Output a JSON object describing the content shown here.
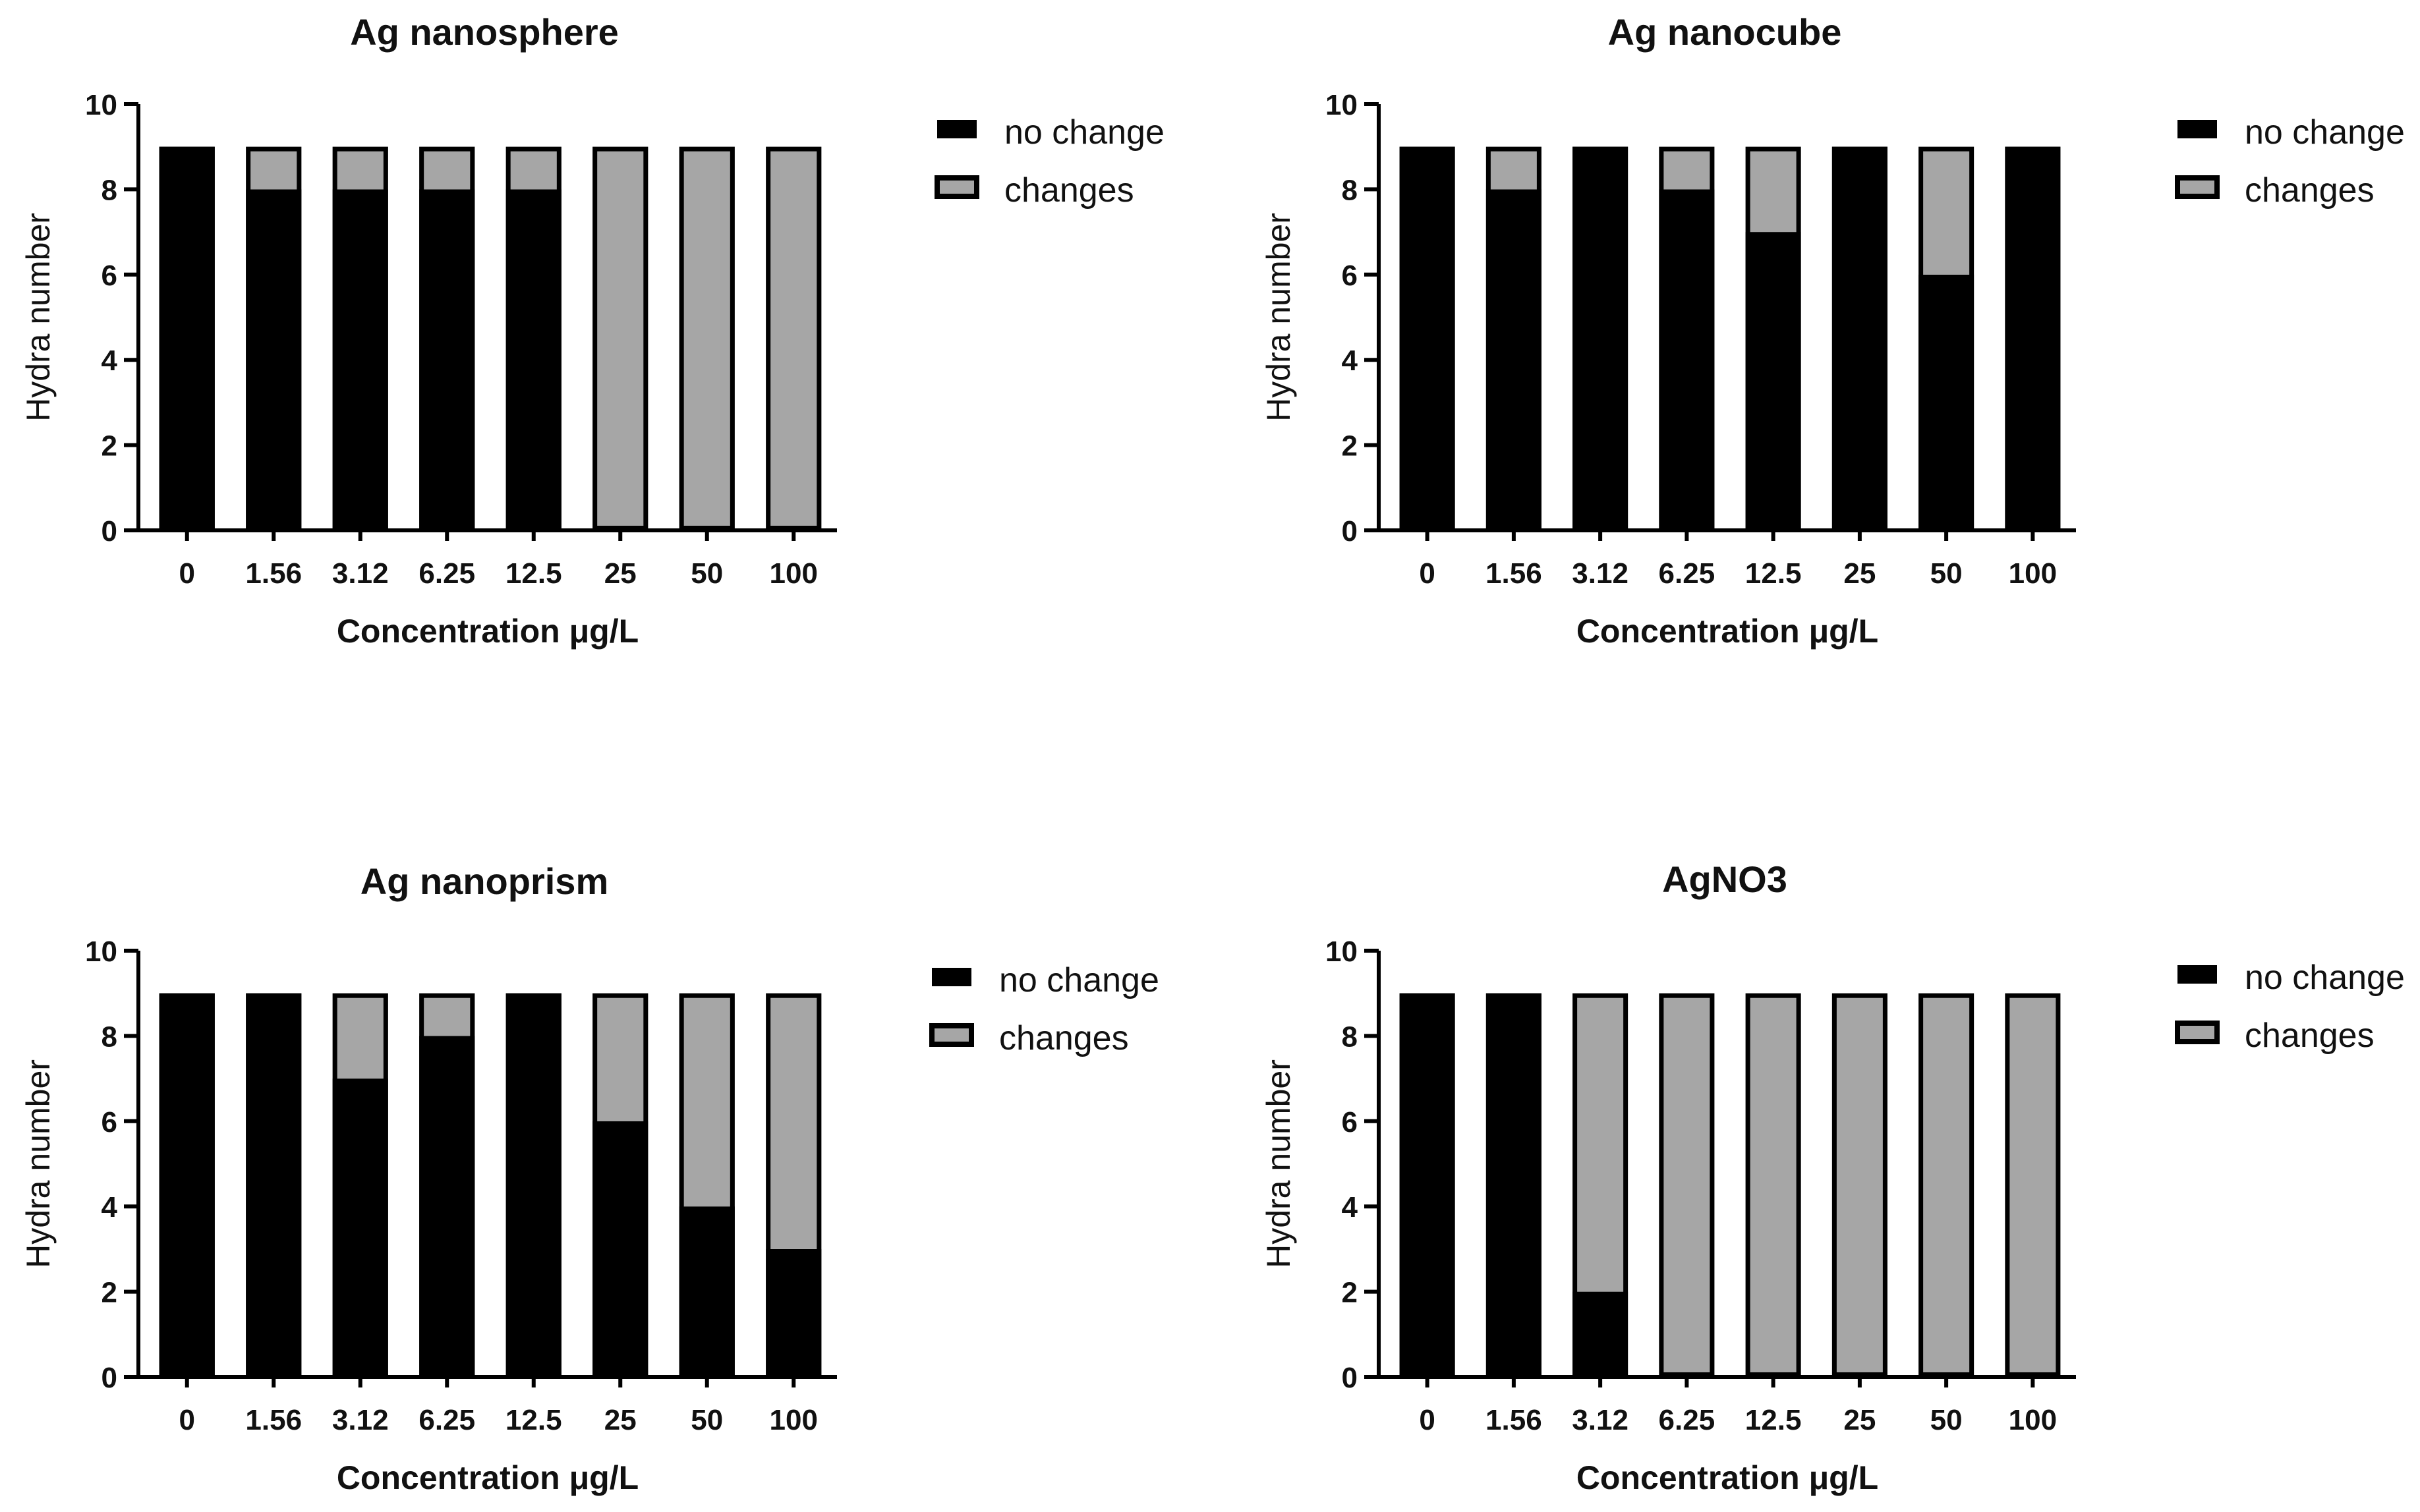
{
  "colors": {
    "no_change": "#000000",
    "changes": "#a6a6a6",
    "outline": "#000000",
    "axis": "#000000"
  },
  "chart_data": [
    {
      "type": "bar",
      "stacked": true,
      "title": "Ag nanosphere",
      "xlabel": "Concentration μg/L",
      "ylabel": "Hydra number",
      "ylim": [
        0,
        10
      ],
      "yticks": [
        0,
        2,
        4,
        6,
        8,
        10
      ],
      "categories": [
        "0",
        "1.56",
        "3.12",
        "6.25",
        "12.5",
        "25",
        "50",
        "100"
      ],
      "series": [
        {
          "name": "no change",
          "values": [
            9,
            8,
            8,
            8,
            8,
            0,
            0,
            0
          ]
        },
        {
          "name": "changes",
          "values": [
            0,
            1,
            1,
            1,
            1,
            9,
            9,
            9
          ]
        }
      ],
      "legend": [
        "no change",
        "changes"
      ],
      "legend_position": "right"
    },
    {
      "type": "bar",
      "stacked": true,
      "title": "Ag nanocube",
      "xlabel": "Concentration μg/L",
      "ylabel": "Hydra number",
      "ylim": [
        0,
        10
      ],
      "yticks": [
        0,
        2,
        4,
        6,
        8,
        10
      ],
      "categories": [
        "0",
        "1.56",
        "3.12",
        "6.25",
        "12.5",
        "25",
        "50",
        "100"
      ],
      "series": [
        {
          "name": "no change",
          "values": [
            9,
            8,
            9,
            8,
            7,
            9,
            6,
            9
          ]
        },
        {
          "name": "changes",
          "values": [
            0,
            1,
            0,
            1,
            2,
            0,
            3,
            0
          ]
        }
      ],
      "legend": [
        "no change",
        "changes"
      ],
      "legend_position": "right"
    },
    {
      "type": "bar",
      "stacked": true,
      "title": "Ag nanoprism",
      "xlabel": "Concentration μg/L",
      "ylabel": "Hydra number",
      "ylim": [
        0,
        10
      ],
      "yticks": [
        0,
        2,
        4,
        6,
        8,
        10
      ],
      "categories": [
        "0",
        "1.56",
        "3.12",
        "6.25",
        "12.5",
        "25",
        "50",
        "100"
      ],
      "series": [
        {
          "name": "no change",
          "values": [
            9,
            9,
            7,
            8,
            9,
            6,
            4,
            3
          ]
        },
        {
          "name": "changes",
          "values": [
            0,
            0,
            2,
            1,
            0,
            3,
            5,
            6
          ]
        }
      ],
      "legend": [
        "no change",
        "changes"
      ],
      "legend_position": "right"
    },
    {
      "type": "bar",
      "stacked": true,
      "title": "AgNO3",
      "xlabel": "Concentration μg/L",
      "ylabel": "Hydra number",
      "ylim": [
        0,
        10
      ],
      "yticks": [
        0,
        2,
        4,
        6,
        8,
        10
      ],
      "categories": [
        "0",
        "1.56",
        "3.12",
        "6.25",
        "12.5",
        "25",
        "50",
        "100"
      ],
      "series": [
        {
          "name": "no change",
          "values": [
            9,
            9,
            2,
            0,
            0,
            0,
            0,
            0
          ]
        },
        {
          "name": "changes",
          "values": [
            0,
            0,
            7,
            9,
            9,
            9,
            9,
            9
          ]
        }
      ],
      "legend": [
        "no change",
        "changes"
      ],
      "legend_position": "right"
    }
  ]
}
